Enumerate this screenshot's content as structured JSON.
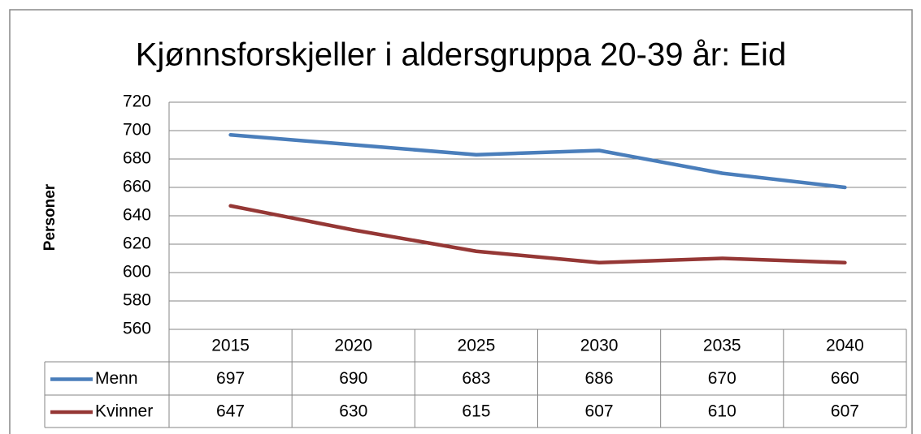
{
  "chart_data": {
    "type": "line",
    "title": "Kjønnsforskjeller i aldersgruppa 20-39 år: Eid",
    "y_label": "Personer",
    "categories": [
      "2015",
      "2020",
      "2025",
      "2030",
      "2035",
      "2040"
    ],
    "series": [
      {
        "name": "Menn",
        "color": "#4a7ebb",
        "values": [
          697,
          690,
          683,
          686,
          670,
          660
        ]
      },
      {
        "name": "Kvinner",
        "color": "#953735",
        "values": [
          647,
          630,
          615,
          607,
          610,
          607
        ]
      }
    ],
    "ylim": [
      560,
      720
    ],
    "yticks": [
      560,
      580,
      600,
      620,
      640,
      660,
      680,
      700,
      720
    ],
    "grid": true
  }
}
